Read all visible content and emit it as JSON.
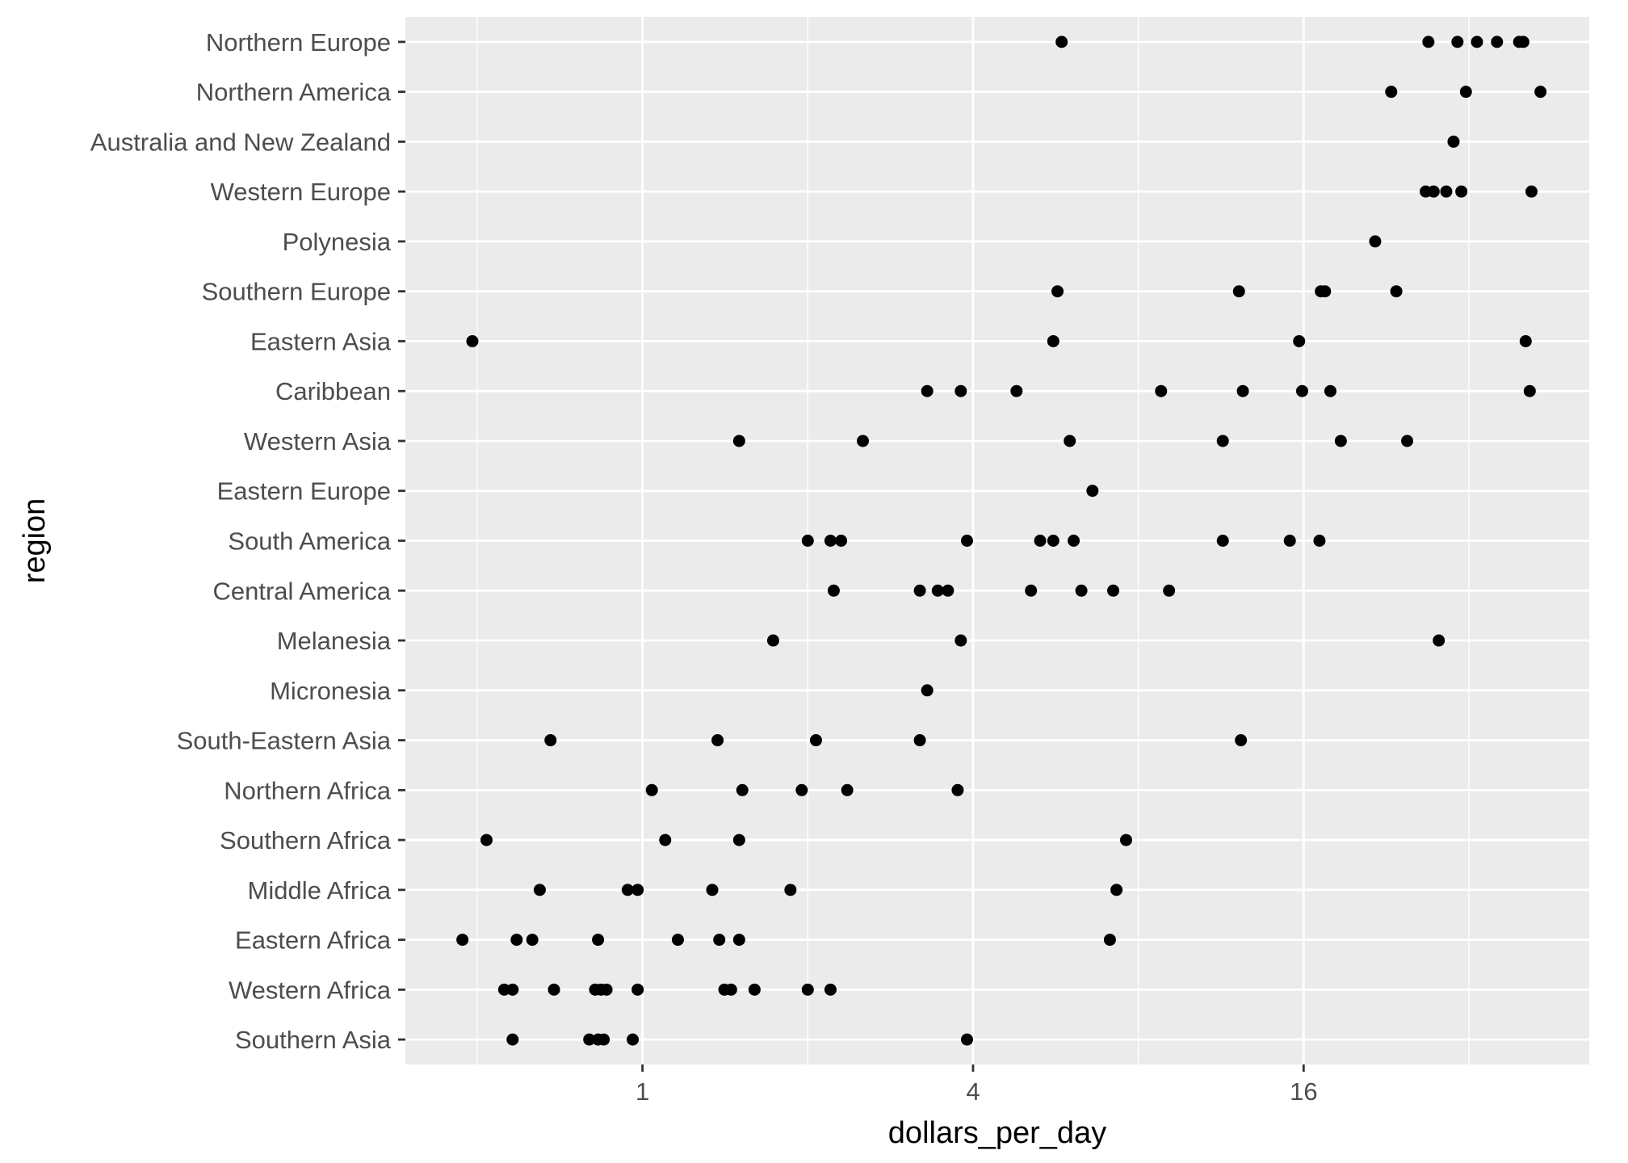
{
  "chart_data": {
    "type": "scatter",
    "title": "",
    "xlabel": "dollars_per_day",
    "ylabel": "region",
    "x_scale": "log2",
    "x_ticks": [
      1,
      4,
      16
    ],
    "x_tick_labels": [
      "1",
      "4",
      "16"
    ],
    "xlim": [
      0.37,
      53
    ],
    "grid": true,
    "legend": "none",
    "colors": {
      "panel": "#ebebeb",
      "grid": "#ffffff",
      "point": "#000000",
      "text": "#4d4d4d"
    },
    "categories": [
      "Northern Europe",
      "Northern America",
      "Australia and New Zealand",
      "Western Europe",
      "Polynesia",
      "Southern Europe",
      "Eastern Asia",
      "Caribbean",
      "Western Asia",
      "Eastern Europe",
      "South America",
      "Central America",
      "Melanesia",
      "Micronesia",
      "South-Eastern Asia",
      "Northern Africa",
      "Southern Africa",
      "Middle Africa",
      "Eastern Africa",
      "Western Africa",
      "Southern Asia"
    ],
    "points": [
      {
        "region": "Northern Europe",
        "x": [
          5.8,
          27.0,
          30.5,
          33.1,
          36.0,
          39.5,
          40.2
        ]
      },
      {
        "region": "Northern America",
        "x": [
          23.1,
          31.6,
          43.2
        ]
      },
      {
        "region": "Australia and New Zealand",
        "x": [
          30.0
        ]
      },
      {
        "region": "Western Europe",
        "x": [
          26.7,
          27.6,
          29.1,
          31.0,
          41.6
        ]
      },
      {
        "region": "Polynesia",
        "x": [
          21.6
        ]
      },
      {
        "region": "Southern Europe",
        "x": [
          5.7,
          12.2,
          17.2,
          17.5,
          23.6
        ]
      },
      {
        "region": "Eastern Asia",
        "x": [
          0.49,
          5.6,
          15.7,
          40.6
        ]
      },
      {
        "region": "Caribbean",
        "x": [
          3.3,
          3.8,
          4.8,
          8.8,
          12.4,
          15.9,
          17.9,
          41.3
        ]
      },
      {
        "region": "Western Asia",
        "x": [
          1.5,
          2.52,
          6.0,
          11.4,
          18.7,
          24.7
        ]
      },
      {
        "region": "Eastern Europe",
        "x": [
          6.6
        ]
      },
      {
        "region": "South America",
        "x": [
          2.0,
          2.2,
          2.3,
          3.9,
          5.3,
          5.6,
          6.1,
          11.4,
          15.1,
          17.1
        ]
      },
      {
        "region": "Central America",
        "x": [
          2.23,
          3.2,
          3.45,
          3.6,
          5.1,
          6.3,
          7.2,
          9.1
        ]
      },
      {
        "region": "Melanesia",
        "x": [
          1.73,
          3.8,
          28.2
        ]
      },
      {
        "region": "Micronesia",
        "x": [
          3.3
        ]
      },
      {
        "region": "South-Eastern Asia",
        "x": [
          0.68,
          1.37,
          2.07,
          3.2,
          12.3
        ]
      },
      {
        "region": "Northern Africa",
        "x": [
          1.04,
          1.52,
          1.95,
          2.36,
          3.75
        ]
      },
      {
        "region": "Southern Africa",
        "x": [
          0.52,
          1.1,
          1.5,
          7.6
        ]
      },
      {
        "region": "Middle Africa",
        "x": [
          0.65,
          0.94,
          0.98,
          1.34,
          1.86,
          7.3
        ]
      },
      {
        "region": "Eastern Africa",
        "x": [
          0.47,
          0.59,
          0.63,
          0.83,
          1.16,
          1.38,
          1.5,
          7.1
        ]
      },
      {
        "region": "Western Africa",
        "x": [
          0.56,
          0.58,
          0.69,
          0.82,
          0.84,
          0.86,
          0.98,
          1.41,
          1.45,
          1.6,
          2.0,
          2.2
        ]
      },
      {
        "region": "Southern Asia",
        "x": [
          0.58,
          0.8,
          0.83,
          0.85,
          0.96,
          3.9
        ]
      }
    ]
  }
}
